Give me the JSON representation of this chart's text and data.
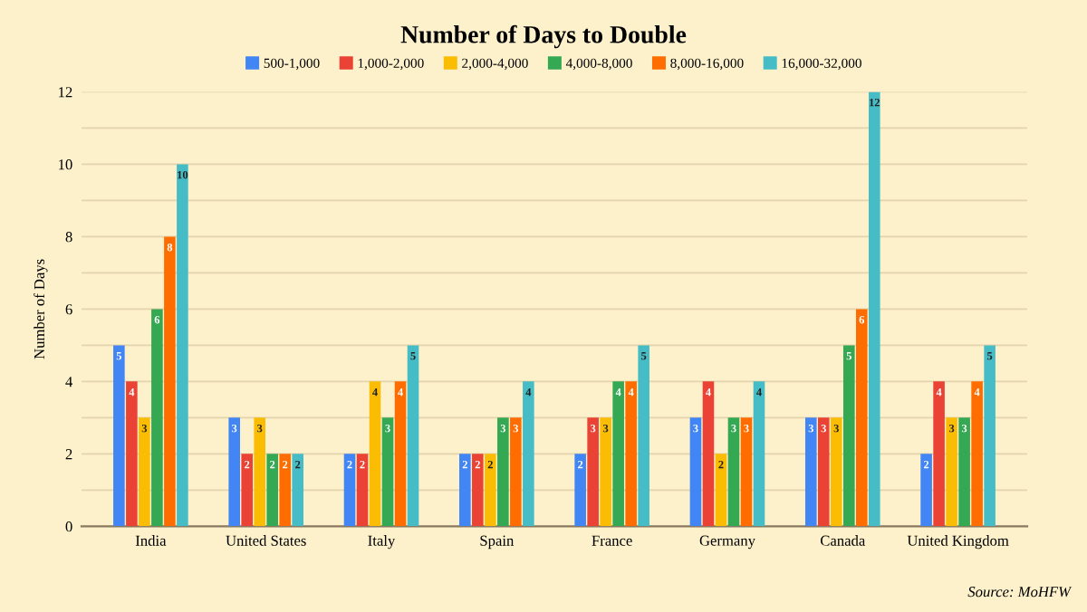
{
  "chart_data": {
    "type": "bar",
    "title": "Number of Days to Double",
    "ylabel": "Number of Days",
    "categories": [
      "India",
      "United States",
      "Italy",
      "Spain",
      "France",
      "Germany",
      "Canada",
      "United Kingdom"
    ],
    "series": [
      {
        "name": "500-1,000",
        "color": "#4285f4",
        "values": [
          5,
          3,
          2,
          2,
          2,
          3,
          3,
          2
        ]
      },
      {
        "name": "1,000-2,000",
        "color": "#ea4335",
        "values": [
          4,
          2,
          2,
          2,
          3,
          4,
          3,
          4
        ]
      },
      {
        "name": "2,000-4,000",
        "color": "#fbbc04",
        "values": [
          3,
          3,
          4,
          2,
          3,
          2,
          3,
          3
        ]
      },
      {
        "name": "4,000-8,000",
        "color": "#34a853",
        "values": [
          6,
          2,
          3,
          3,
          4,
          3,
          5,
          3
        ]
      },
      {
        "name": "8,000-16,000",
        "color": "#ff6d01",
        "values": [
          8,
          2,
          4,
          3,
          4,
          3,
          6,
          4
        ]
      },
      {
        "name": "16,000-32,000",
        "color": "#46bdc6",
        "values": [
          10,
          2,
          5,
          4,
          5,
          4,
          12,
          5
        ]
      }
    ],
    "ylim": [
      0,
      12
    ],
    "yticks": [
      0,
      {
        "value": 1,
        "label": null
      },
      2,
      {
        "value": 3,
        "label": null
      },
      4,
      {
        "value": 5,
        "label": null
      },
      6,
      {
        "value": 7,
        "label": null
      },
      8,
      {
        "value": 9,
        "label": null
      },
      10,
      {
        "value": 11,
        "label": null
      },
      12
    ],
    "grid": "y",
    "legend": "top",
    "data_labels": true,
    "annotations": [
      "Source: MoHFW"
    ]
  }
}
